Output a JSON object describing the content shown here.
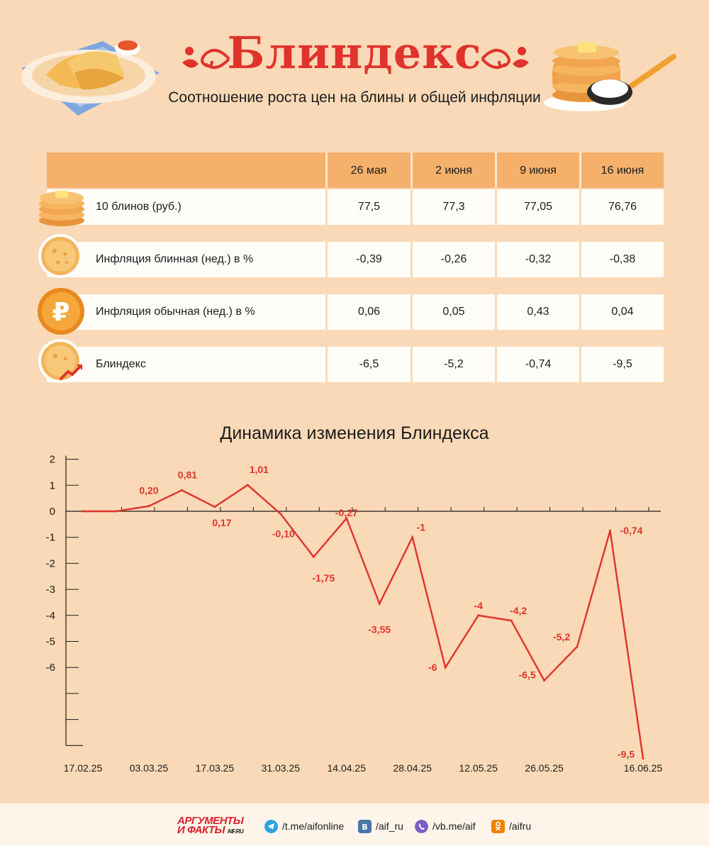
{
  "header": {
    "title": "Блиндекс",
    "subtitle": "Соотношение роста цен на блины и общей инфляции"
  },
  "table": {
    "columns": [
      "26 мая",
      "2 июня",
      "9 июня",
      "16 июня"
    ],
    "rows": [
      {
        "icon": "pancake-stack-icon",
        "label": "10 блинов (руб.)",
        "values": [
          "77,5",
          "77,3",
          "77,05",
          "76,76"
        ]
      },
      {
        "icon": "pancake-icon",
        "label": "Инфляция блинная (нед.) в %",
        "values": [
          "-0,39",
          "-0,26",
          "-0,32",
          "-0,38"
        ]
      },
      {
        "icon": "ruble-coin-icon",
        "label": "Инфляция обычная (нед.) в %",
        "values": [
          "0,06",
          "0,05",
          "0,43",
          "0,04"
        ]
      },
      {
        "icon": "pancake-trend-icon",
        "label": "Блиндекс",
        "values": [
          "-6,5",
          "-5,2",
          "-0,74",
          "-9,5"
        ]
      }
    ]
  },
  "chart_data": {
    "type": "line",
    "title": "Динамика изменения Блиндекса",
    "xlabel": "",
    "ylabel": "",
    "ylim": [
      -9,
      2
    ],
    "y_ticks": [
      "2",
      "1",
      "0",
      "-1",
      "-2",
      "-3",
      "-4",
      "-5",
      "-6",
      "",
      ""
    ],
    "x_tick_labels": [
      "17.02.25",
      "03.03.25",
      "17.03.25",
      "31.03.25",
      "14.04.25",
      "28.04.25",
      "12.05.25",
      "26.05.25",
      "16.06.25"
    ],
    "x": [
      "17.02.25",
      "24.02.25",
      "03.03.25",
      "10.03.25",
      "17.03.25",
      "24.03.25",
      "31.03.25",
      "07.04.25",
      "14.04.25",
      "21.04.25",
      "28.04.25",
      "05.05.25",
      "12.05.25",
      "19.05.25",
      "26.05.25",
      "02.06.25",
      "09.06.25",
      "16.06.25"
    ],
    "values": [
      0,
      0,
      0.2,
      0.81,
      0.17,
      1.01,
      -0.1,
      -1.75,
      -0.27,
      -3.55,
      -1,
      -6,
      -4,
      -4.2,
      -6.5,
      -5.2,
      -0.74,
      -9.5
    ],
    "labels": [
      "",
      "",
      "0,20",
      "0,81",
      "0,17",
      "1,01",
      "-0,10",
      "-1,75",
      "-0,27",
      "-3,55",
      "-1",
      "-6",
      "-4",
      "-4,2",
      "-6,5",
      "-5,2",
      "-0,74",
      "-9,5"
    ],
    "grid": false,
    "line_color": "#e0332b"
  },
  "footer": {
    "logo_top": "АРГУМЕНТЫ",
    "logo_bottom": "И ФАКТЫ",
    "logo_site": "AIF.RU",
    "links": [
      {
        "icon": "telegram-icon",
        "text": "/t.me/aifonline",
        "color": "#2aa3df"
      },
      {
        "icon": "vk-icon",
        "text": "/aif_ru",
        "color": "#4a76a8"
      },
      {
        "icon": "viber-icon",
        "text": "/vb.me/aif",
        "color": "#7b5fc4"
      },
      {
        "icon": "odnoklassniki-icon",
        "text": "/aifru",
        "color": "#ee8208"
      }
    ]
  }
}
